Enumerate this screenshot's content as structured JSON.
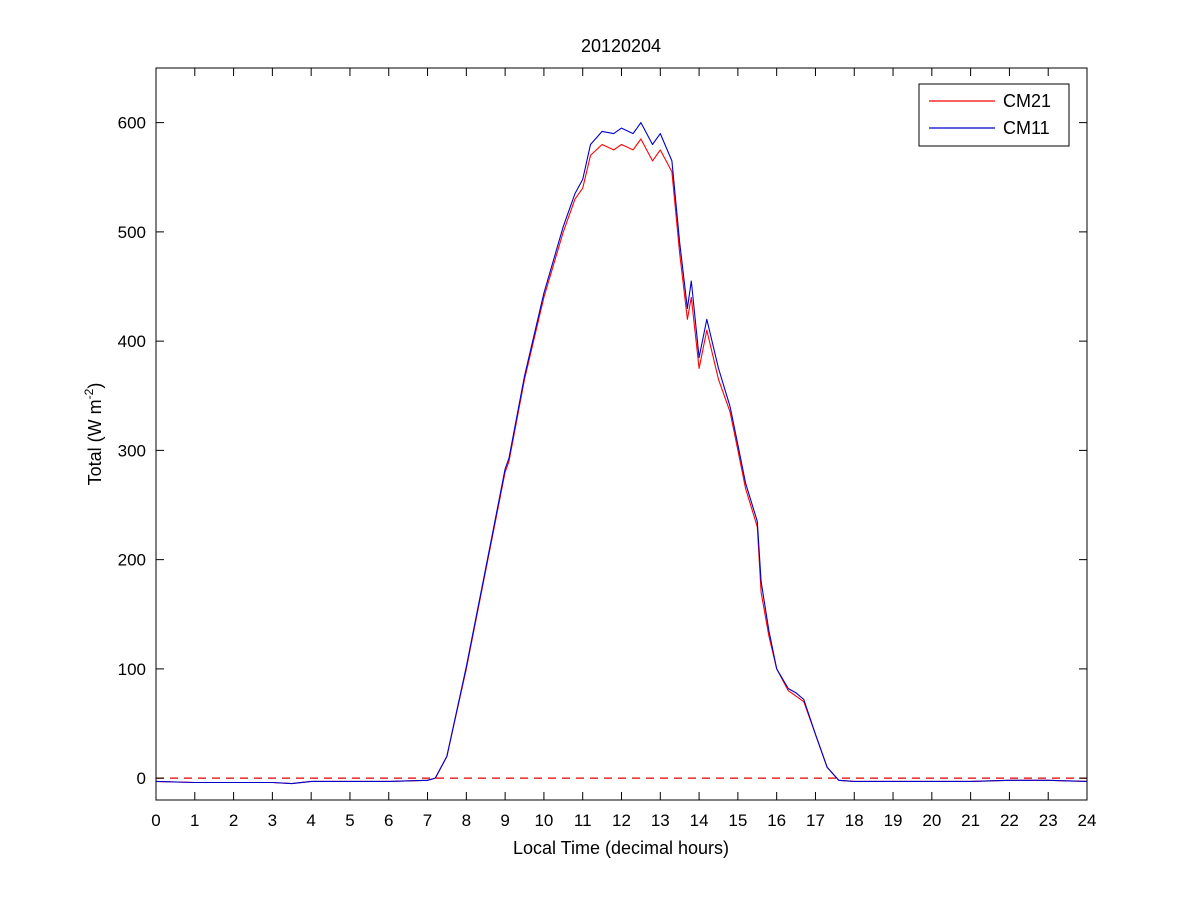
{
  "chart_data": {
    "type": "line",
    "title": "20120204",
    "xlabel": "Local Time (decimal hours)",
    "ylabel_main": "Total (W m",
    "ylabel_sup": "-2",
    "ylabel_close": ")",
    "xlim": [
      0,
      24
    ],
    "ylim": [
      -20,
      650
    ],
    "xticks": [
      0,
      1,
      2,
      3,
      4,
      5,
      6,
      7,
      8,
      9,
      10,
      11,
      12,
      13,
      14,
      15,
      16,
      17,
      18,
      19,
      20,
      21,
      22,
      23,
      24
    ],
    "yticks": [
      0,
      100,
      200,
      300,
      400,
      500,
      600
    ],
    "grid": false,
    "legend_position": "top-right",
    "reference_line": {
      "y": 0,
      "style": "dashed",
      "color": "#e00000"
    },
    "series": [
      {
        "name": "CM21",
        "color": "#ff0000",
        "x": [
          0,
          1,
          2,
          3,
          3.5,
          4,
          5,
          6,
          7,
          7.2,
          7.5,
          8,
          8.5,
          9,
          9.1,
          9.5,
          10,
          10.5,
          10.8,
          11,
          11.2,
          11.5,
          11.8,
          12,
          12.3,
          12.5,
          12.8,
          13,
          13.3,
          13.5,
          13.7,
          13.8,
          14,
          14.2,
          14.5,
          14.8,
          15,
          15.2,
          15.5,
          15.6,
          15.8,
          16,
          16.3,
          16.5,
          16.7,
          17,
          17.3,
          17.6,
          18,
          19,
          20,
          21,
          22,
          23,
          24
        ],
        "y": [
          -3,
          -4,
          -4,
          -4,
          -5,
          -3,
          -3,
          -3,
          -2,
          0,
          20,
          100,
          190,
          280,
          290,
          365,
          440,
          500,
          530,
          540,
          570,
          580,
          575,
          580,
          575,
          585,
          565,
          575,
          555,
          480,
          420,
          440,
          375,
          410,
          365,
          335,
          300,
          265,
          230,
          170,
          130,
          100,
          80,
          75,
          70,
          40,
          10,
          -2,
          -3,
          -3,
          -3,
          -3,
          -2,
          -2,
          -3
        ]
      },
      {
        "name": "CM11",
        "color": "#0000cc",
        "x": [
          0,
          1,
          2,
          3,
          3.5,
          4,
          5,
          6,
          7,
          7.2,
          7.5,
          8,
          8.5,
          9,
          9.1,
          9.5,
          10,
          10.5,
          10.8,
          11,
          11.2,
          11.5,
          11.8,
          12,
          12.3,
          12.5,
          12.8,
          13,
          13.3,
          13.5,
          13.7,
          13.8,
          14,
          14.2,
          14.5,
          14.8,
          15,
          15.2,
          15.5,
          15.6,
          15.8,
          16,
          16.3,
          16.5,
          16.7,
          17,
          17.3,
          17.6,
          18,
          19,
          20,
          21,
          22,
          23,
          24
        ],
        "y": [
          -3,
          -4,
          -4,
          -4,
          -5,
          -3,
          -3,
          -3,
          -2,
          0,
          20,
          102,
          192,
          283,
          293,
          368,
          444,
          505,
          535,
          548,
          580,
          592,
          590,
          595,
          590,
          600,
          580,
          590,
          565,
          490,
          430,
          455,
          385,
          420,
          375,
          340,
          305,
          270,
          235,
          180,
          135,
          100,
          82,
          78,
          72,
          40,
          10,
          -2,
          -3,
          -3,
          -3,
          -3,
          -2,
          -2,
          -3
        ]
      }
    ]
  }
}
